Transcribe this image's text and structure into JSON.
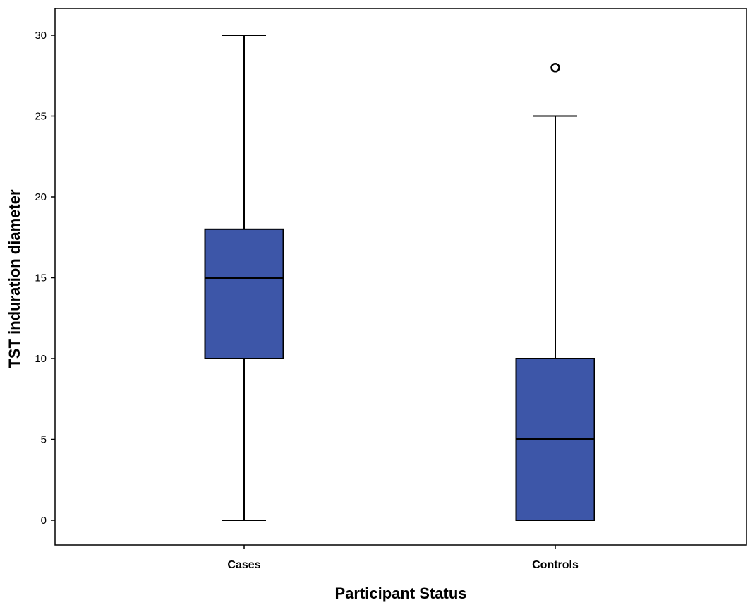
{
  "chart_data": {
    "type": "boxplot",
    "xlabel": "Participant Status",
    "ylabel": "TST induration diameter",
    "ylim": [
      0,
      30
    ],
    "yticks": [
      0,
      5,
      10,
      15,
      20,
      25,
      30
    ],
    "grid": false,
    "categories": [
      "Cases",
      "Controls"
    ],
    "boxes": [
      {
        "category": "Cases",
        "min": 0,
        "q1": 10,
        "median": 15,
        "q3": 18,
        "max": 30,
        "outliers": []
      },
      {
        "category": "Controls",
        "min": 0,
        "q1": 0,
        "median": 5,
        "q3": 10,
        "max": 25,
        "outliers": [
          28
        ]
      }
    ],
    "colors": {
      "box_fill": "#3d56a8",
      "line": "#000000"
    }
  }
}
